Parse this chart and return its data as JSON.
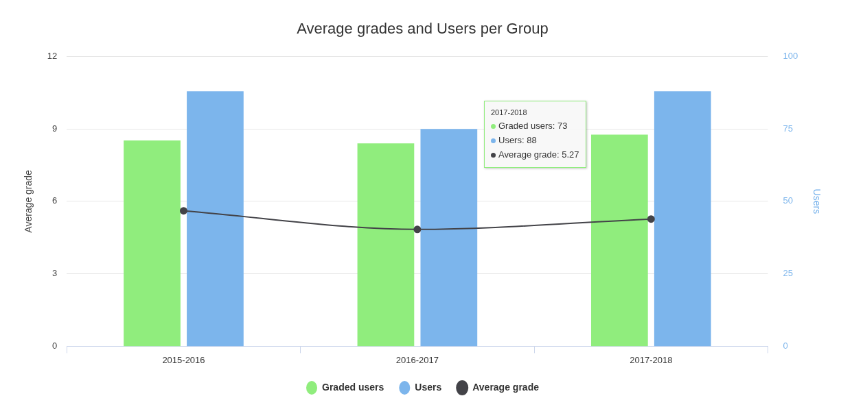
{
  "chart_data": {
    "type": "bar",
    "title": "Average grades and Users per Group",
    "categories": [
      "2015-2016",
      "2016-2017",
      "2017-2018"
    ],
    "series": [
      {
        "name": "Graded users",
        "color": "#90ed7d",
        "values": [
          71,
          70,
          73
        ],
        "axis": "y2"
      },
      {
        "name": "Users",
        "color": "#7cb5ec",
        "values": [
          88,
          75,
          88
        ],
        "axis": "y2"
      },
      {
        "name": "Average grade",
        "type": "line",
        "color": "#434348",
        "values": [
          5.61,
          4.84,
          5.27
        ],
        "axis": "y"
      }
    ],
    "ylabel": "Average grade",
    "y2label": "Users",
    "ylim": [
      0,
      12
    ],
    "yticks": [
      0,
      3,
      6,
      9,
      12
    ],
    "y2lim": [
      0,
      100
    ],
    "y2ticks": [
      0,
      25,
      50,
      75,
      100
    ],
    "grid": "y",
    "legend": "bottom",
    "marker": "circle",
    "annotations": [
      "2017-2018",
      "Graded users: 73",
      "Users: 88",
      "Average grade: 5.27"
    ]
  }
}
